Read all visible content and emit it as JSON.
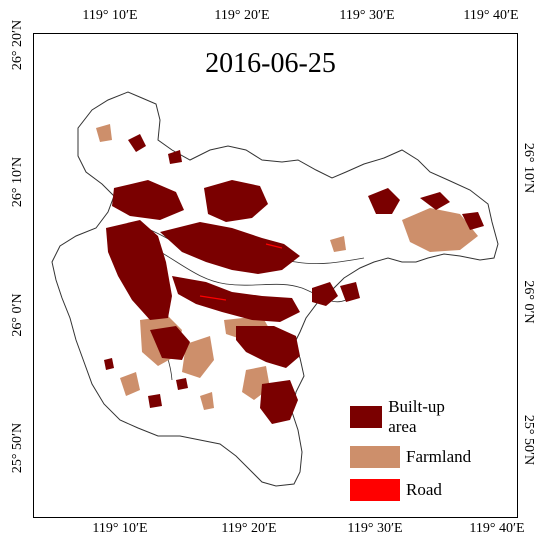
{
  "title": "2016-06-25",
  "longitude_labels": [
    "119° 10′E",
    "119° 20′E",
    "119° 30′E",
    "119° 40′E"
  ],
  "latitude_labels": [
    "26° 20′N",
    "26° 10′N",
    "26° 0′N",
    "25° 50′N"
  ],
  "legend": [
    {
      "label": "Built-up area",
      "color": "#7a0000"
    },
    {
      "label": "Farmland",
      "color": "#cd8f6b"
    },
    {
      "label": "Road",
      "color": "#ff0000"
    }
  ],
  "colors": {
    "boundary": "#333333",
    "frame": "#000000",
    "background": "#ffffff"
  }
}
